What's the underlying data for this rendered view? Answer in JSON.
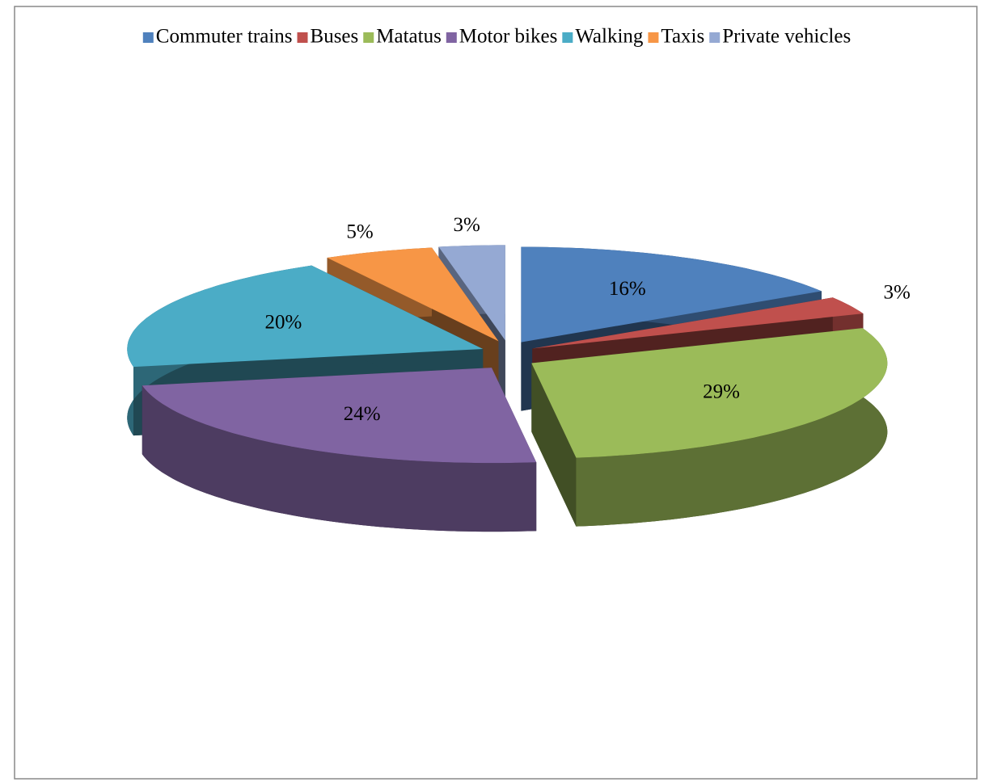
{
  "chart_data": {
    "type": "pie3d",
    "categories": [
      "Commuter trains",
      "Buses",
      "Matatus",
      "Motor bikes",
      "Walking",
      "Taxis",
      "Private vehicles"
    ],
    "values": [
      16,
      3,
      29,
      24,
      20,
      5,
      3
    ],
    "value_labels": [
      "16%",
      "3%",
      "29%",
      "24%",
      "20%",
      "5%",
      "3%"
    ],
    "colors": [
      "#4f81bd",
      "#c0504d",
      "#9bbb59",
      "#8064a2",
      "#4bacc6",
      "#f79646",
      "#95a9d3"
    ],
    "legend": "top"
  }
}
